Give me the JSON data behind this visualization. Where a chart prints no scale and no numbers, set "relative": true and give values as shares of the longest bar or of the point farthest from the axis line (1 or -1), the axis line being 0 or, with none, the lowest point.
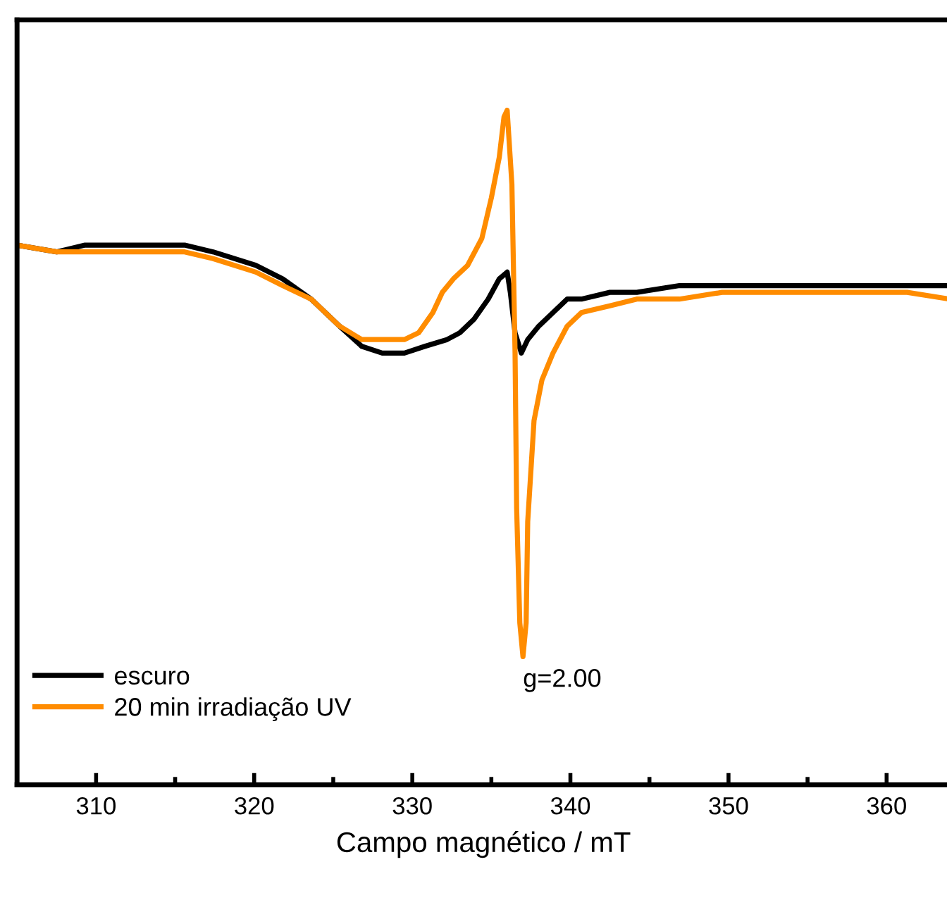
{
  "chart_data": {
    "type": "line",
    "relative": true,
    "xlabel": "Campo magnético / mT",
    "xlim": [
      305,
      364
    ],
    "xticks": [
      310,
      320,
      330,
      340,
      350,
      360
    ],
    "legend": "bottom left",
    "grid": false,
    "marker": "none",
    "line_style": "solid",
    "annotations": [
      {
        "text": "g=2.00",
        "x": 337.0,
        "y": 0.19
      }
    ],
    "series": [
      {
        "name": "escuro",
        "color": "#000000",
        "x": [
          305.0,
          307.5,
          309.3,
          312.9,
          315.6,
          317.4,
          320.1,
          321.8,
          323.6,
          325.4,
          326.8,
          328.1,
          329.5,
          330.8,
          332.2,
          333.0,
          333.9,
          334.8,
          335.5,
          336.0,
          336.2,
          336.5,
          336.9,
          337.3,
          338.0,
          338.9,
          339.8,
          340.7,
          342.5,
          344.2,
          346.9,
          349.6,
          353.2,
          357.7,
          361.3,
          364.0
        ],
        "values": [
          0.8,
          0.79,
          0.8,
          0.8,
          0.8,
          0.79,
          0.77,
          0.75,
          0.72,
          0.68,
          0.65,
          0.64,
          0.64,
          0.65,
          0.66,
          0.67,
          0.69,
          0.72,
          0.75,
          0.76,
          0.73,
          0.67,
          0.64,
          0.66,
          0.68,
          0.7,
          0.72,
          0.72,
          0.73,
          0.73,
          0.74,
          0.74,
          0.74,
          0.74,
          0.74,
          0.74
        ]
      },
      {
        "name": "20 min irradiação UV",
        "color": "#ff8c00",
        "x": [
          305.0,
          307.5,
          309.3,
          312.9,
          315.6,
          317.4,
          320.1,
          321.8,
          323.6,
          325.4,
          326.8,
          328.1,
          329.5,
          330.4,
          331.3,
          331.9,
          332.6,
          333.5,
          334.4,
          335.0,
          335.5,
          335.8,
          336.0,
          336.3,
          336.5,
          336.6,
          336.8,
          337.0,
          337.2,
          337.3,
          337.7,
          338.2,
          338.9,
          339.8,
          340.7,
          342.5,
          344.2,
          346.9,
          349.6,
          353.2,
          357.7,
          361.3,
          364.0
        ],
        "values": [
          0.8,
          0.79,
          0.79,
          0.79,
          0.79,
          0.78,
          0.76,
          0.74,
          0.72,
          0.68,
          0.66,
          0.66,
          0.66,
          0.67,
          0.7,
          0.73,
          0.75,
          0.77,
          0.81,
          0.87,
          0.93,
          0.99,
          1.0,
          0.89,
          0.64,
          0.41,
          0.24,
          0.19,
          0.24,
          0.39,
          0.54,
          0.6,
          0.64,
          0.68,
          0.7,
          0.71,
          0.72,
          0.72,
          0.73,
          0.73,
          0.73,
          0.73,
          0.72
        ]
      }
    ]
  }
}
